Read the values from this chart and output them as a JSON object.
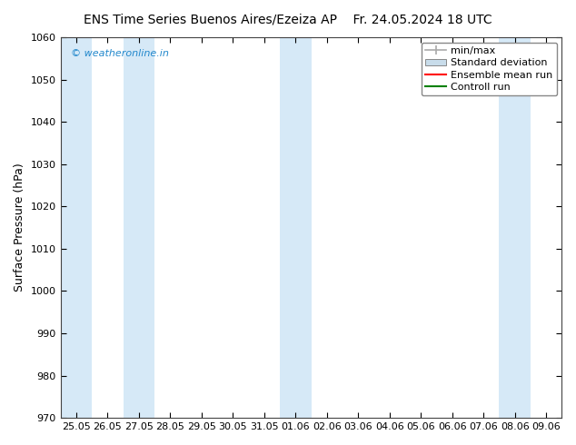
{
  "title_left": "ENS Time Series Buenos Aires/Ezeiza AP",
  "title_right": "Fr. 24.05.2024 18 UTC",
  "ylabel": "Surface Pressure (hPa)",
  "ylim": [
    970,
    1060
  ],
  "yticks": [
    970,
    980,
    990,
    1000,
    1010,
    1020,
    1030,
    1040,
    1050,
    1060
  ],
  "x_tick_labels": [
    "25.05",
    "26.05",
    "27.05",
    "28.05",
    "29.05",
    "30.05",
    "31.05",
    "01.06",
    "02.06",
    "03.06",
    "04.06",
    "05.06",
    "06.06",
    "07.06",
    "08.06",
    "09.06"
  ],
  "shaded_indices": [
    0,
    2,
    7,
    14
  ],
  "band_color": "#d6e9f7",
  "watermark": "© weatheronline.in",
  "watermark_color": "#2288cc",
  "legend_labels": [
    "min/max",
    "Standard deviation",
    "Ensemble mean run",
    "Controll run"
  ],
  "legend_colors": [
    "#aaaaaa",
    "#c8dcea",
    "red",
    "green"
  ],
  "bg_color": "#ffffff",
  "title_fontsize": 10,
  "ylabel_fontsize": 9,
  "tick_fontsize": 8,
  "legend_fontsize": 8
}
